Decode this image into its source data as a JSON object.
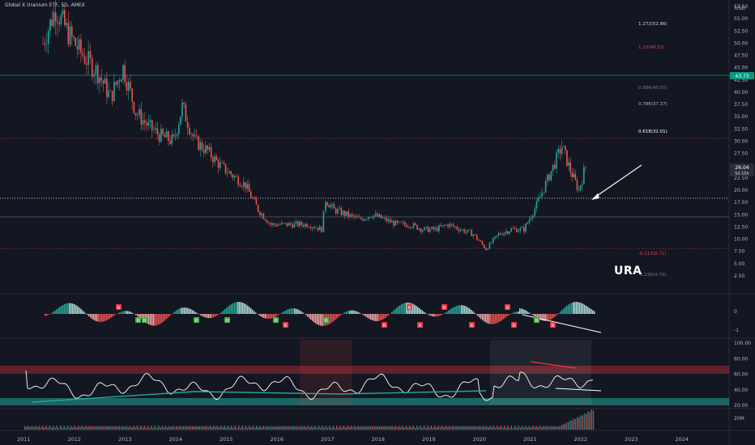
{
  "header": {
    "title": "Global X Uranium ETF, 5D, AMEX",
    "currency": "USD"
  },
  "annotation": {
    "ticker_note": "URA"
  },
  "price_axis": {
    "ticks": [
      "57.50",
      "55.00",
      "52.50",
      "50.00",
      "47.50",
      "45.00",
      "42.50",
      "40.00",
      "37.50",
      "35.00",
      "32.50",
      "30.00",
      "27.50",
      "25.00",
      "22.50",
      "20.00",
      "17.50",
      "15.00",
      "12.50",
      "10.00",
      "7.50",
      "5.00",
      "2.50"
    ],
    "price_badge": "43.73",
    "last_price": "26.04",
    "last_time": "5d 15h"
  },
  "fib_levels": [
    {
      "label": "1.272(52.86)",
      "color": "#d1d4dc"
    },
    {
      "label": "1.13(48.33)",
      "color": "#f23645"
    },
    {
      "label": "0.886(40.55)",
      "color": "#787b86"
    },
    {
      "label": "0.786(37.37)",
      "color": "#b2b5be"
    },
    {
      "label": "0.618(32.01)",
      "color": "#ffffff"
    },
    {
      "label": "-0.113(8.71)",
      "color": "#f23645"
    },
    {
      "label": "-0.236(4.79)",
      "color": "#787b86"
    }
  ],
  "oscillator_axis": {
    "ticks": [
      "0",
      "-1"
    ]
  },
  "rsi_axis": {
    "ticks": [
      "100.00",
      "80.00",
      "60.00",
      "40.00",
      "20.00"
    ]
  },
  "volume_axis": {
    "ticks": [
      "20M"
    ]
  },
  "osc_markers": [
    "H",
    "R",
    "H",
    "H",
    "H",
    "H",
    "R",
    "H",
    "R",
    "R",
    "R",
    "R",
    "R",
    "R",
    "R",
    "H",
    "R"
  ],
  "time_axis": {
    "ticks": [
      "2011",
      "2012",
      "2013",
      "2014",
      "2015",
      "2016",
      "2017",
      "2018",
      "2019",
      "2020",
      "2021",
      "2022",
      "2023",
      "2024"
    ]
  },
  "chart_data": {
    "type": "line",
    "title": "Global X Uranium ETF, 5D, AMEX",
    "x": [
      "2011-01",
      "2011-06",
      "2011-09",
      "2011-12",
      "2012-03",
      "2012-07",
      "2012-10",
      "2013-01",
      "2013-04",
      "2013-07",
      "2013-10",
      "2014-01",
      "2014-03",
      "2014-06",
      "2014-09",
      "2014-12",
      "2015-03",
      "2015-06",
      "2015-09",
      "2015-12",
      "2016-03",
      "2016-06",
      "2016-09",
      "2016-12",
      "2017-01",
      "2017-03",
      "2017-06",
      "2017-09",
      "2017-12",
      "2018-03",
      "2018-06",
      "2018-09",
      "2018-12",
      "2019-03",
      "2019-06",
      "2019-09",
      "2019-12",
      "2020-03",
      "2020-06",
      "2020-09",
      "2020-12",
      "2021-03",
      "2021-06",
      "2021-09",
      "2021-11",
      "2022-01",
      "2022-03"
    ],
    "values": [
      null,
      50,
      57,
      52,
      48,
      44,
      39,
      45,
      36,
      33,
      31,
      30,
      37,
      30,
      28,
      25,
      23,
      21,
      16,
      13,
      13,
      13,
      13,
      12,
      18,
      16,
      15,
      14,
      15,
      14,
      13,
      13,
      12,
      12,
      13,
      12,
      11,
      8,
      11,
      12,
      12,
      17,
      23,
      29,
      24,
      20,
      26
    ],
    "ylim": [
      0,
      57.5
    ],
    "xlabel": "",
    "ylabel": ""
  }
}
